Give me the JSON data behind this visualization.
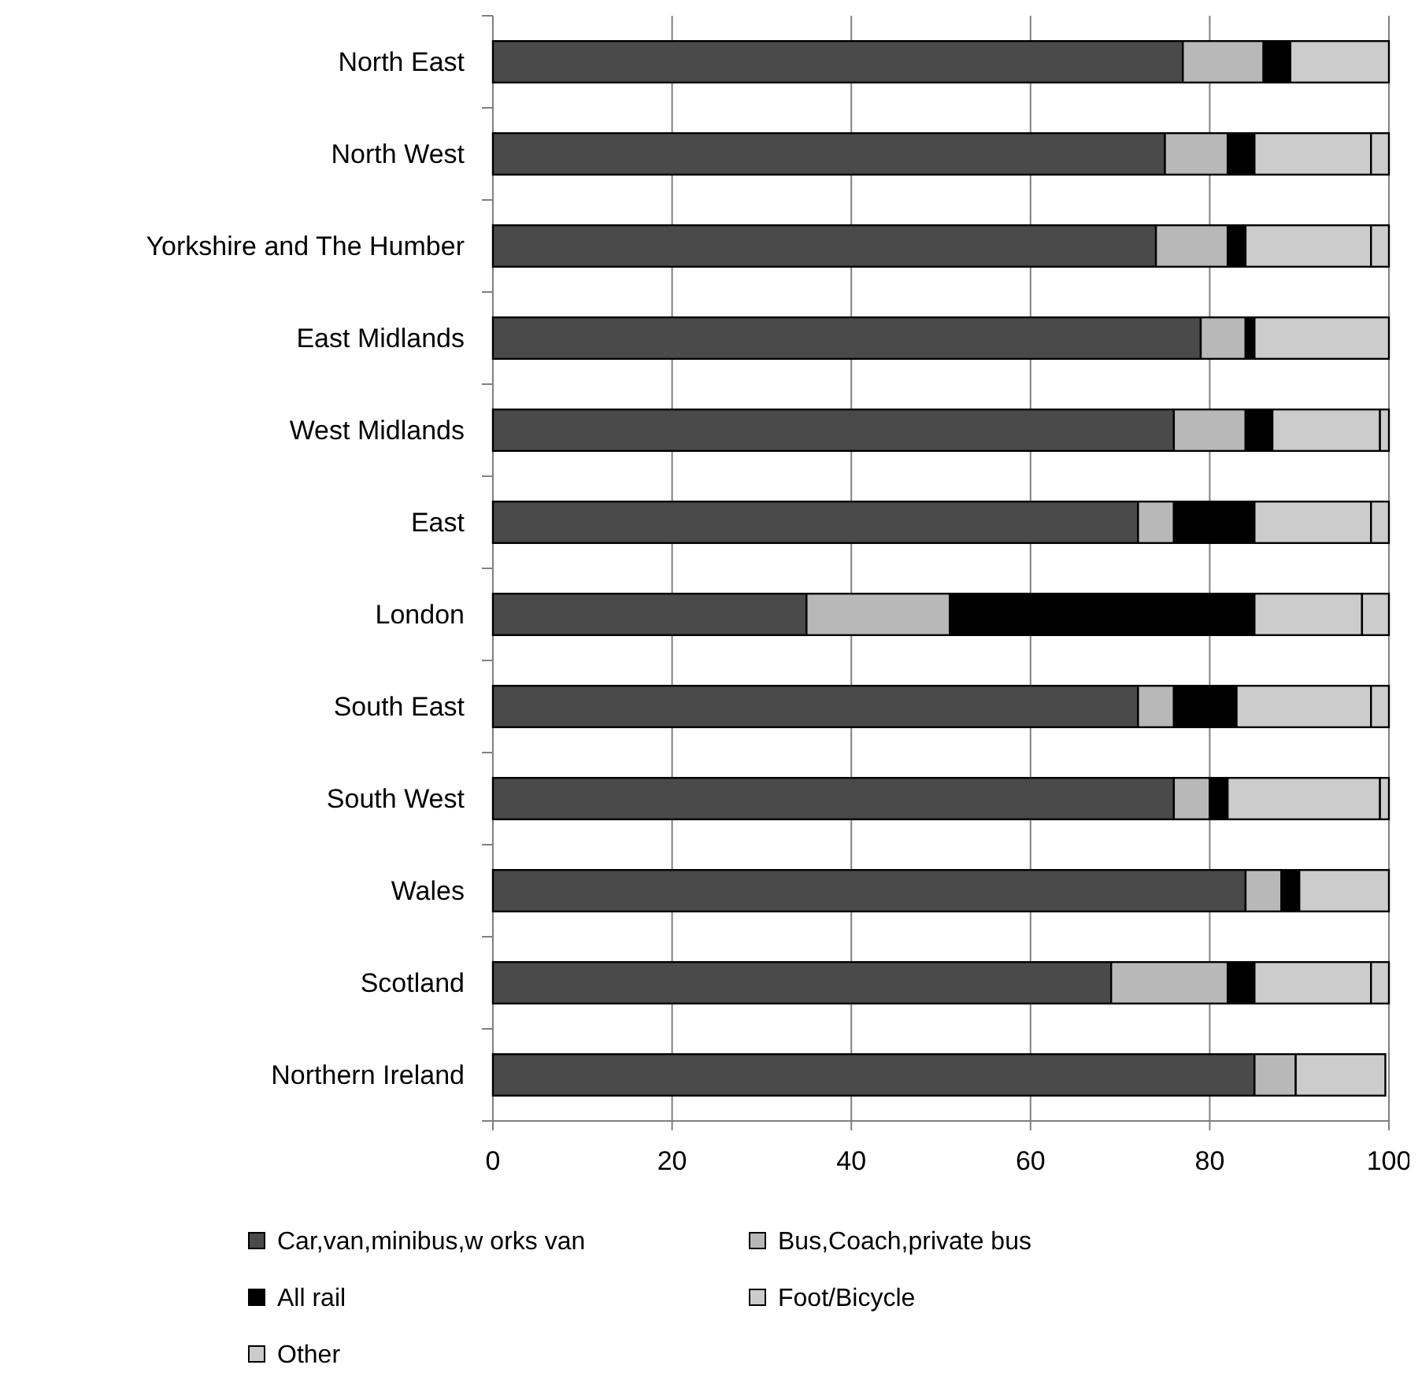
{
  "chart_data": {
    "type": "bar",
    "orientation": "horizontal",
    "stacked": true,
    "categories": [
      "North East",
      "North West",
      "Yorkshire and The Humber",
      "East Midlands",
      "West Midlands",
      "East",
      "London",
      "South East",
      "South West",
      "Wales",
      "Scotland",
      "Northern Ireland"
    ],
    "series": [
      {
        "name": "Car,van,minibus,w orks van",
        "color": "#4a4a4a",
        "values": [
          77,
          75,
          74,
          79,
          76,
          72,
          35,
          72,
          76,
          84,
          69,
          85
        ]
      },
      {
        "name": "Bus,Coach,private bus",
        "color": "#b8b8b8",
        "values": [
          9,
          7,
          8,
          5,
          8,
          4,
          16,
          4,
          4,
          4,
          13,
          4.6
        ]
      },
      {
        "name": "All rail",
        "color": "#000000",
        "values": [
          3,
          3,
          2,
          1,
          3,
          9,
          34,
          7,
          2,
          2,
          3,
          0
        ]
      },
      {
        "name": "Foot/Bicycle",
        "color": "#cccccc",
        "values": [
          11,
          13,
          14,
          15,
          12,
          13,
          12,
          15,
          17,
          10,
          13,
          10
        ]
      },
      {
        "name": "Other",
        "color": "#cccccc",
        "values": [
          0,
          2,
          2,
          0,
          1,
          2,
          3,
          2,
          1,
          0,
          2,
          0
        ]
      }
    ],
    "xlim": [
      0,
      100
    ],
    "xticks": [
      0,
      20,
      40,
      60,
      80,
      100
    ],
    "grid": "x",
    "legend": "bottom"
  }
}
